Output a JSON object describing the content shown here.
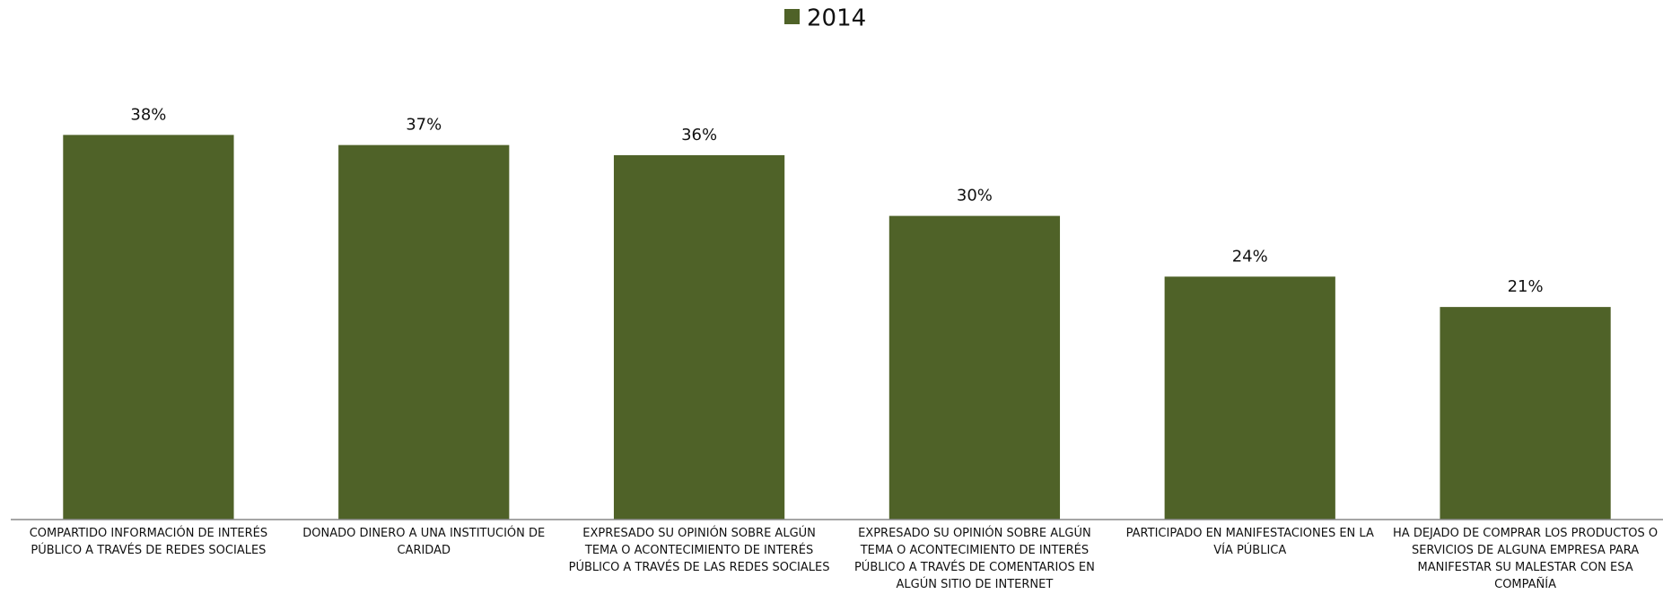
{
  "chart_data": {
    "type": "bar",
    "categories": [
      "COMPARTIDO INFORMACIÓN DE INTERÉS PÚBLICO A TRAVÉS DE REDES SOCIALES",
      "DONADO DINERO A UNA INSTITUCIÓN DE CARIDAD",
      "EXPRESADO SU OPINIÓN SOBRE ALGÚN TEMA O ACONTECIMIENTO DE INTERÉS PÚBLICO A TRAVÉS DE LAS REDES SOCIALES",
      "EXPRESADO SU OPINIÓN SOBRE ALGÚN TEMA O ACONTECIMIENTO DE INTERÉS PÚBLICO A TRAVÉS DE COMENTARIOS EN ALGÚN SITIO DE INTERNET",
      "PARTICIPADO EN MANIFESTACIONES EN LA VÍA PÚBLICA",
      "HA DEJADO DE COMPRAR LOS PRODUCTOS O SERVICIOS DE ALGUNA EMPRESA PARA MANIFESTAR SU MALESTAR CON ESA COMPAÑÍA"
    ],
    "series": [
      {
        "name": "2014",
        "color": "#4f6228",
        "values": [
          38,
          37,
          36,
          30,
          24,
          21
        ],
        "value_labels": [
          "38%",
          "37%",
          "36%",
          "30%",
          "24%",
          "21%"
        ]
      }
    ],
    "ylim": [
      0,
      50
    ]
  }
}
